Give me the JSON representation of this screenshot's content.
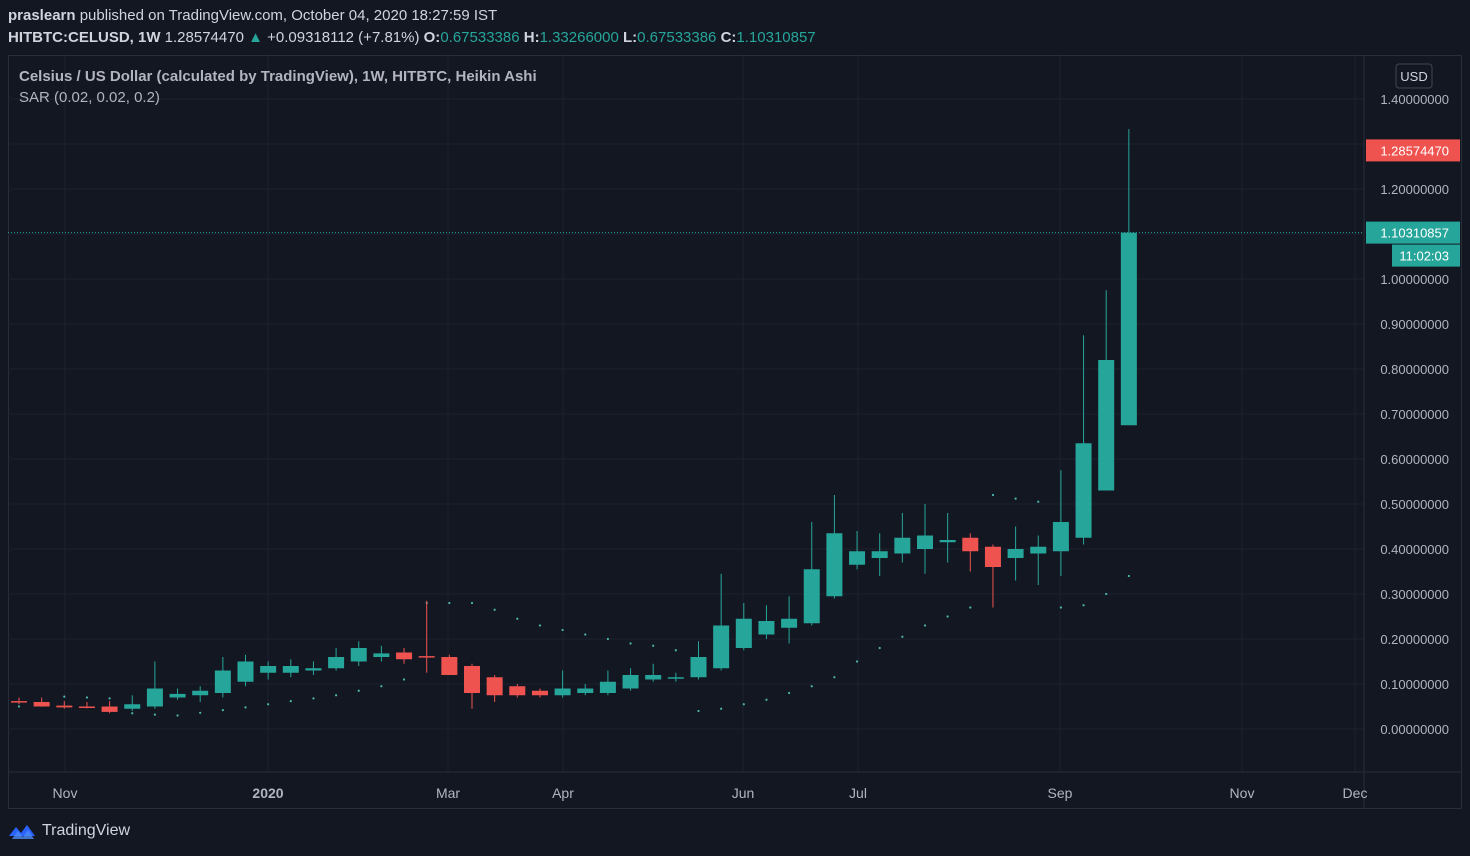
{
  "header": {
    "user": "praslearn",
    "published": "published on TradingView.com, October 04, 2020 18:27:59 IST",
    "symbol": "HITBTC:CELUSD, 1W",
    "last": "1.28574470",
    "up_arrow": "▲",
    "change": "+0.09318112 (+7.81%)",
    "o_label": "O:",
    "o_value": "0.67533386",
    "h_label": "H:",
    "h_value": "1.33266000",
    "l_label": "L:",
    "l_value": "0.67533386",
    "c_label": "C:",
    "c_value": "1.10310857"
  },
  "legend": {
    "title": "Celsius / US Dollar (calculated by TradingView), 1W, HITBTC, Heikin Ashi",
    "indicator": "SAR (0.02, 0.02, 0.2)"
  },
  "axis": {
    "currency": "USD",
    "price_ticks": [
      "1.40000000",
      "1.30000000",
      "1.20000000",
      "1.10000000",
      "1.00000000",
      "0.90000000",
      "0.80000000",
      "0.70000000",
      "0.60000000",
      "0.50000000",
      "0.40000000",
      "0.30000000",
      "0.20000000",
      "0.10000000",
      "0.00000000"
    ],
    "time_ticks": [
      {
        "label": "Nov",
        "bold": false
      },
      {
        "label": "2020",
        "bold": true
      },
      {
        "label": "Mar",
        "bold": false
      },
      {
        "label": "Apr",
        "bold": false
      },
      {
        "label": "Jun",
        "bold": false
      },
      {
        "label": "Jul",
        "bold": false
      },
      {
        "label": "Sep",
        "bold": false
      },
      {
        "label": "Nov",
        "bold": false
      },
      {
        "label": "Dec",
        "bold": false
      }
    ],
    "last_price_label": "1.28574470",
    "close_label": "1.10310857",
    "countdown": "11:02:03"
  },
  "footer": {
    "brand": "TradingView"
  },
  "colors": {
    "up": "#26a69a",
    "down": "#ef5350",
    "bg": "#131722",
    "grid": "#1e2230",
    "text": "#b2b5be"
  },
  "chart_data": {
    "type": "candlestick",
    "style": "Heikin Ashi",
    "title": "Celsius / US Dollar (calculated by TradingView), 1W, HITBTC, Heikin Ashi",
    "ylabel": "USD",
    "ylim": [
      -0.1,
      1.45
    ],
    "candles": [
      {
        "o": 0.062,
        "h": 0.07,
        "l": 0.055,
        "c": 0.06,
        "sar": 0.05
      },
      {
        "o": 0.06,
        "h": 0.07,
        "l": 0.05,
        "c": 0.05,
        "sar": 0.052
      },
      {
        "o": 0.052,
        "h": 0.062,
        "l": 0.045,
        "c": 0.048,
        "sar": 0.072
      },
      {
        "o": 0.05,
        "h": 0.06,
        "l": 0.046,
        "c": 0.048,
        "sar": 0.07
      },
      {
        "o": 0.05,
        "h": 0.062,
        "l": 0.035,
        "c": 0.038,
        "sar": 0.068
      },
      {
        "o": 0.045,
        "h": 0.075,
        "l": 0.04,
        "c": 0.055,
        "sar": 0.035
      },
      {
        "o": 0.05,
        "h": 0.15,
        "l": 0.045,
        "c": 0.09,
        "sar": 0.032
      },
      {
        "o": 0.07,
        "h": 0.09,
        "l": 0.065,
        "c": 0.078,
        "sar": 0.03
      },
      {
        "o": 0.075,
        "h": 0.095,
        "l": 0.06,
        "c": 0.085,
        "sar": 0.036
      },
      {
        "o": 0.08,
        "h": 0.16,
        "l": 0.07,
        "c": 0.13,
        "sar": 0.042
      },
      {
        "o": 0.105,
        "h": 0.165,
        "l": 0.095,
        "c": 0.15,
        "sar": 0.048
      },
      {
        "o": 0.125,
        "h": 0.15,
        "l": 0.11,
        "c": 0.14,
        "sar": 0.055
      },
      {
        "o": 0.125,
        "h": 0.155,
        "l": 0.115,
        "c": 0.14,
        "sar": 0.062
      },
      {
        "o": 0.13,
        "h": 0.15,
        "l": 0.12,
        "c": 0.135,
        "sar": 0.068
      },
      {
        "o": 0.135,
        "h": 0.18,
        "l": 0.13,
        "c": 0.16,
        "sar": 0.075
      },
      {
        "o": 0.15,
        "h": 0.195,
        "l": 0.14,
        "c": 0.18,
        "sar": 0.085
      },
      {
        "o": 0.16,
        "h": 0.185,
        "l": 0.15,
        "c": 0.168,
        "sar": 0.095
      },
      {
        "o": 0.17,
        "h": 0.18,
        "l": 0.145,
        "c": 0.155,
        "sar": 0.11
      },
      {
        "o": 0.162,
        "h": 0.285,
        "l": 0.125,
        "c": 0.16,
        "sar": 0.28
      },
      {
        "o": 0.16,
        "h": 0.165,
        "l": 0.12,
        "c": 0.12,
        "sar": 0.28
      },
      {
        "o": 0.14,
        "h": 0.145,
        "l": 0.045,
        "c": 0.08,
        "sar": 0.28
      },
      {
        "o": 0.115,
        "h": 0.12,
        "l": 0.06,
        "c": 0.075,
        "sar": 0.265
      },
      {
        "o": 0.095,
        "h": 0.1,
        "l": 0.07,
        "c": 0.075,
        "sar": 0.245
      },
      {
        "o": 0.085,
        "h": 0.09,
        "l": 0.07,
        "c": 0.075,
        "sar": 0.23
      },
      {
        "o": 0.075,
        "h": 0.13,
        "l": 0.07,
        "c": 0.09,
        "sar": 0.22
      },
      {
        "o": 0.08,
        "h": 0.1,
        "l": 0.075,
        "c": 0.09,
        "sar": 0.21
      },
      {
        "o": 0.08,
        "h": 0.13,
        "l": 0.075,
        "c": 0.105,
        "sar": 0.2
      },
      {
        "o": 0.09,
        "h": 0.135,
        "l": 0.085,
        "c": 0.12,
        "sar": 0.19
      },
      {
        "o": 0.11,
        "h": 0.145,
        "l": 0.105,
        "c": 0.12,
        "sar": 0.185
      },
      {
        "o": 0.115,
        "h": 0.125,
        "l": 0.105,
        "c": 0.115,
        "sar": 0.175
      },
      {
        "o": 0.115,
        "h": 0.195,
        "l": 0.11,
        "c": 0.16,
        "sar": 0.04
      },
      {
        "o": 0.135,
        "h": 0.345,
        "l": 0.13,
        "c": 0.23,
        "sar": 0.045
      },
      {
        "o": 0.18,
        "h": 0.28,
        "l": 0.175,
        "c": 0.245,
        "sar": 0.055
      },
      {
        "o": 0.21,
        "h": 0.275,
        "l": 0.2,
        "c": 0.24,
        "sar": 0.065
      },
      {
        "o": 0.225,
        "h": 0.295,
        "l": 0.19,
        "c": 0.245,
        "sar": 0.08
      },
      {
        "o": 0.235,
        "h": 0.46,
        "l": 0.23,
        "c": 0.355,
        "sar": 0.095
      },
      {
        "o": 0.295,
        "h": 0.52,
        "l": 0.29,
        "c": 0.435,
        "sar": 0.115
      },
      {
        "o": 0.365,
        "h": 0.44,
        "l": 0.355,
        "c": 0.395,
        "sar": 0.15
      },
      {
        "o": 0.38,
        "h": 0.435,
        "l": 0.34,
        "c": 0.395,
        "sar": 0.18
      },
      {
        "o": 0.39,
        "h": 0.48,
        "l": 0.37,
        "c": 0.425,
        "sar": 0.205
      },
      {
        "o": 0.4,
        "h": 0.5,
        "l": 0.345,
        "c": 0.43,
        "sar": 0.23
      },
      {
        "o": 0.415,
        "h": 0.48,
        "l": 0.37,
        "c": 0.42,
        "sar": 0.25
      },
      {
        "o": 0.425,
        "h": 0.435,
        "l": 0.35,
        "c": 0.395,
        "sar": 0.27
      },
      {
        "o": 0.405,
        "h": 0.41,
        "l": 0.27,
        "c": 0.36,
        "sar": 0.52
      },
      {
        "o": 0.38,
        "h": 0.45,
        "l": 0.33,
        "c": 0.4,
        "sar": 0.512
      },
      {
        "o": 0.39,
        "h": 0.43,
        "l": 0.32,
        "c": 0.405,
        "sar": 0.505
      },
      {
        "o": 0.395,
        "h": 0.575,
        "l": 0.34,
        "c": 0.46,
        "sar": 0.27
      },
      {
        "o": 0.425,
        "h": 0.875,
        "l": 0.41,
        "c": 0.635,
        "sar": 0.275
      },
      {
        "o": 0.53,
        "h": 0.975,
        "l": 0.53,
        "c": 0.82,
        "sar": 0.3
      },
      {
        "o": 0.675,
        "h": 1.333,
        "l": 0.675,
        "c": 1.103,
        "sar": 0.34
      }
    ],
    "last_price": 1.2857447,
    "close": 1.10310857
  }
}
